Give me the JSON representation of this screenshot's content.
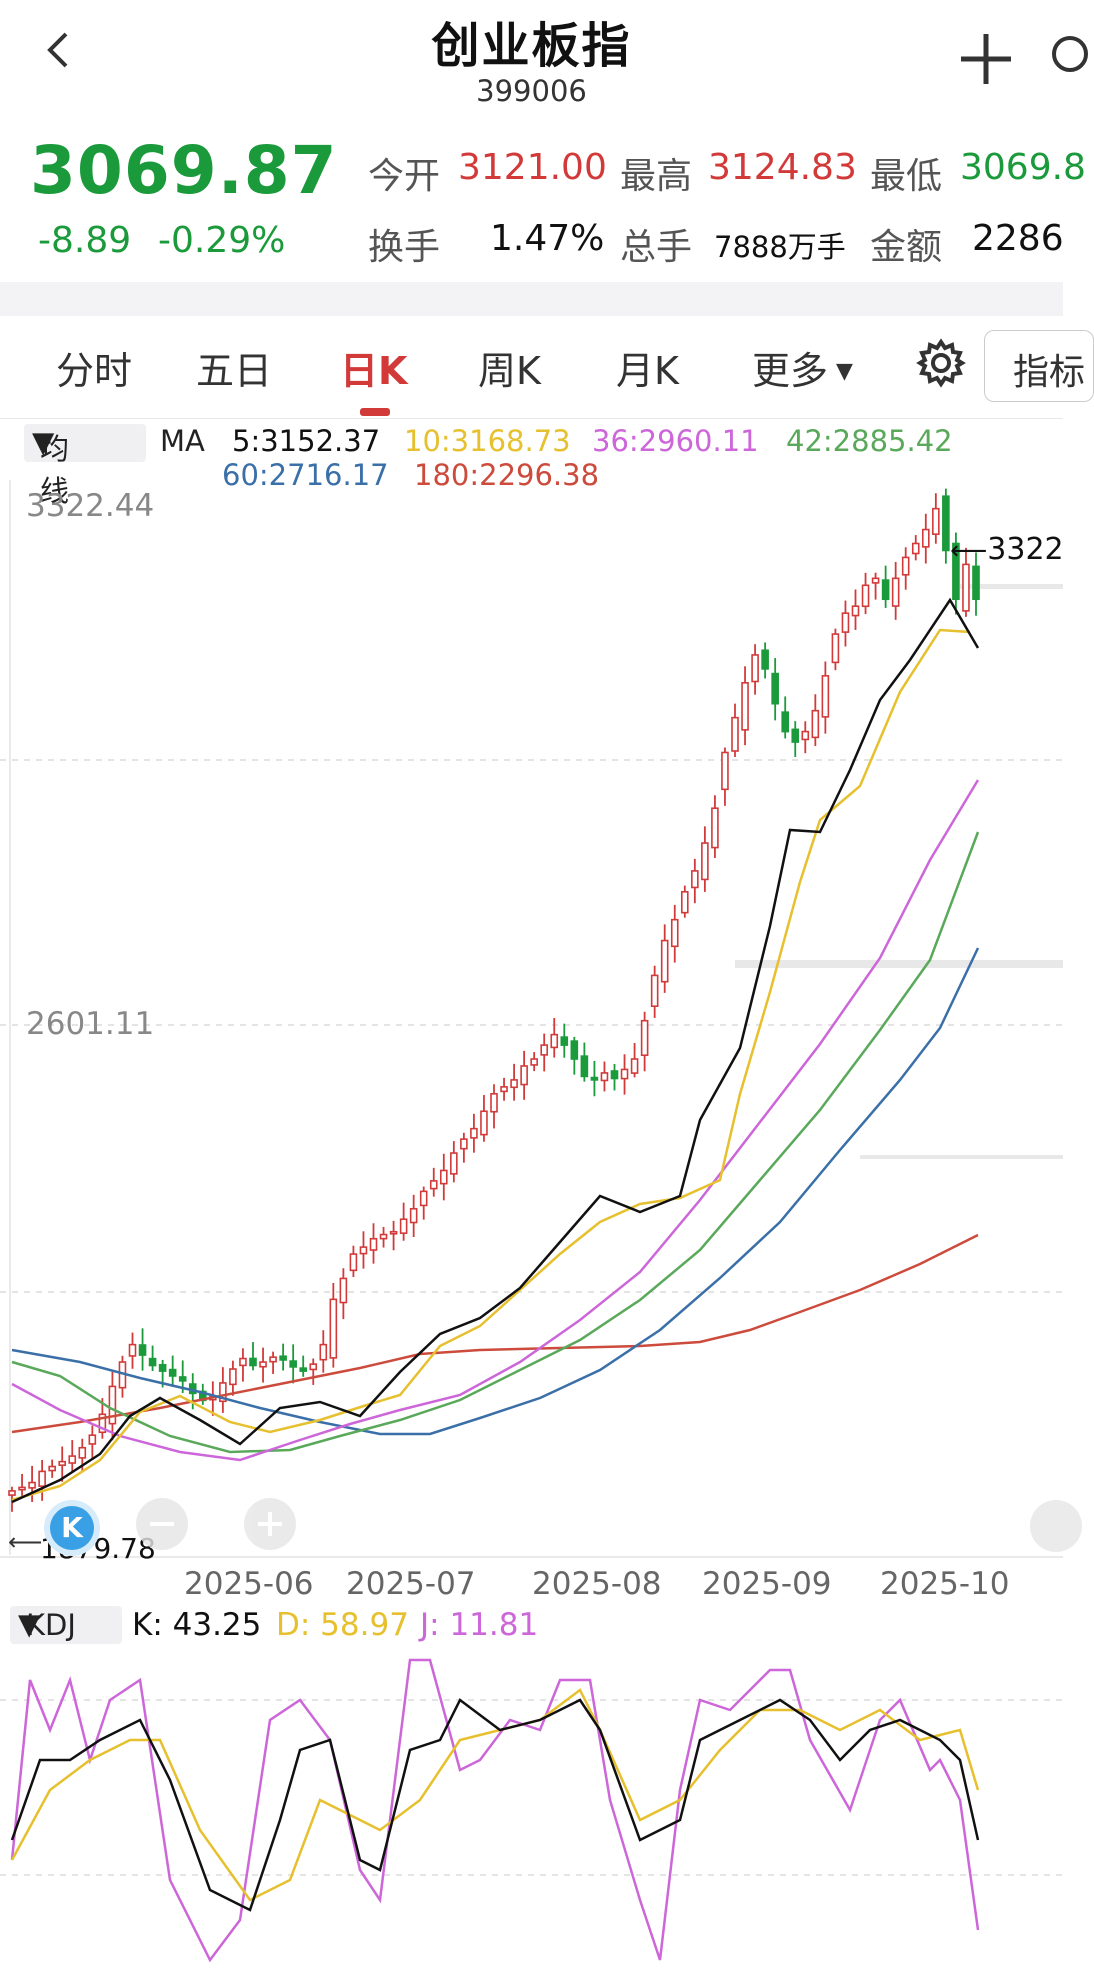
{
  "header": {
    "title": "创业板指",
    "code": "399006"
  },
  "quote": {
    "price": "3069.87",
    "change": "-8.89",
    "change_pct": "-0.29%",
    "open_label": "今开",
    "open": "3121.00",
    "high_label": "最高",
    "high": "3124.83",
    "low_label": "最低",
    "low": "3069.8",
    "turnover_label": "换手",
    "turnover": "1.47%",
    "volume_label": "总手",
    "volume": "7888万手",
    "amount_label": "金额",
    "amount": "2286"
  },
  "tabs": [
    "分时",
    "五日",
    "日K",
    "周K",
    "月K",
    "更多"
  ],
  "indicator_button": "指标",
  "ma_legend": {
    "toggle": "均线",
    "prefix": "MA",
    "items": [
      {
        "text": "5:3152.37",
        "color": "#111111"
      },
      {
        "text": "10:3168.73",
        "color": "#e6c02e"
      },
      {
        "text": "36:2960.11",
        "color": "#cc66d9"
      },
      {
        "text": "42:2885.42",
        "color": "#5aa85a"
      },
      {
        "text": "60:2716.17",
        "color": "#3a6fa8"
      },
      {
        "text": "180:2296.38",
        "color": "#cc4b3c"
      }
    ]
  },
  "price_axis": {
    "top_label": "3322.44",
    "mid_label": "2601.11",
    "bottom_label": "1879.78",
    "max_marker": "3322",
    "min_marker": "1879.78"
  },
  "date_labels": [
    "2025-06",
    "2025-07",
    "2025-08",
    "2025-09",
    "2025-10"
  ],
  "kdj": {
    "toggle": "KDJ",
    "K": "K: 43.25",
    "D": "D: 58.97",
    "J": "J: 11.81",
    "colors": {
      "K": "#111111",
      "D": "#e6c02e",
      "J": "#cc66d9"
    }
  },
  "chart_data": {
    "type": "candlestick",
    "y_range": [
      1879.78,
      3322.44
    ],
    "close_series": [
      1900,
      1905,
      1912,
      1928,
      1935,
      1942,
      1950,
      1962,
      1980,
      2010,
      2050,
      2085,
      2110,
      2095,
      2080,
      2072,
      2065,
      2058,
      2040,
      2030,
      2035,
      2055,
      2075,
      2090,
      2080,
      2085,
      2092,
      2088,
      2078,
      2072,
      2082,
      2110,
      2175,
      2205,
      2240,
      2250,
      2262,
      2268,
      2272,
      2290,
      2305,
      2330,
      2345,
      2360,
      2385,
      2405,
      2420,
      2445,
      2470,
      2480,
      2490,
      2510,
      2520,
      2540,
      2555,
      2540,
      2520,
      2495,
      2490,
      2500,
      2492,
      2505,
      2520,
      2575,
      2640,
      2690,
      2720,
      2760,
      2790,
      2830,
      2880,
      2960,
      3010,
      3060,
      3100,
      3080,
      3030,
      2990,
      2975,
      2990,
      3020,
      3070,
      3130,
      3160,
      3170,
      3200,
      3210,
      3180,
      3210,
      3240,
      3260,
      3280,
      3310,
      3250,
      3180,
      3230,
      3180
    ],
    "ma5_last": 3152.37,
    "ma10_last": 3168.73,
    "ma36_last": 2960.11,
    "ma42_last": 2885.42,
    "ma60_last": 2716.17,
    "ma180_last": 2296.38
  }
}
